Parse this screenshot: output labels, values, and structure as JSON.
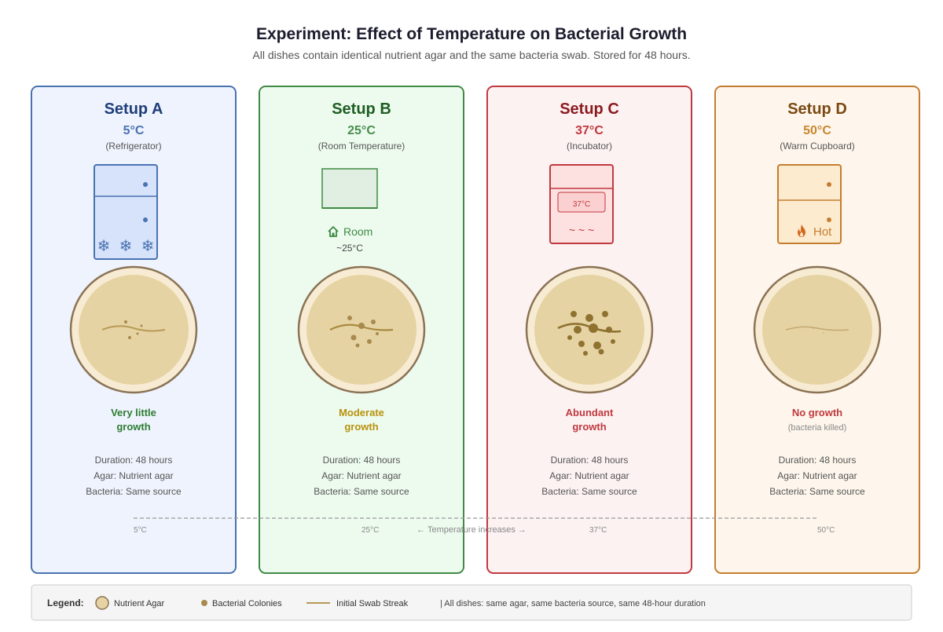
{
  "title": "Experiment: Effect of Temperature on Bacterial Growth",
  "subtitle": "All dishes contain identical nutrient agar and the same bacteria swab. Stored for 48 hours.",
  "setups": [
    {
      "name": "Setup A",
      "temp": "5°C",
      "location": "(Refrigerator)",
      "result_line1": "Very little",
      "result_line2": "growth",
      "result_note": "",
      "duration": "Duration: 48 hours",
      "agar": "Agar: Nutrient agar",
      "bacteria": "Bacteria: Same source",
      "scale_label": "5°C",
      "colors": {
        "border": "#4a72b0",
        "fill": "#eef3fd",
        "title": "#1f3f7a",
        "temp": "#4a72b0",
        "result": "#2e7d32"
      }
    },
    {
      "name": "Setup B",
      "temp": "25°C",
      "location": "(Room Temperature)",
      "result_line1": "Moderate",
      "result_line2": "growth",
      "result_note": "",
      "duration": "Duration: 48 hours",
      "agar": "Agar: Nutrient agar",
      "bacteria": "Bacteria: Same source",
      "scale_label": "25°C",
      "colors": {
        "border": "#3f8a44",
        "fill": "#edfbef",
        "title": "#1e5e22",
        "temp": "#4a8c4e",
        "result": "#b8920e"
      }
    },
    {
      "name": "Setup C",
      "temp": "37°C",
      "location": "(Incubator)",
      "result_line1": "Abundant",
      "result_line2": "growth",
      "result_note": "",
      "duration": "Duration: 48 hours",
      "agar": "Agar: Nutrient agar",
      "bacteria": "Bacteria: Same source",
      "scale_label": "37°C",
      "colors": {
        "border": "#c0393f",
        "fill": "#fdf2f2",
        "title": "#8b1a1f",
        "temp": "#c0393f",
        "result": "#c0393f"
      }
    },
    {
      "name": "Setup D",
      "temp": "50°C",
      "location": "(Warm Cupboard)",
      "result_line1": "No growth",
      "result_line2": "",
      "result_note": "(bacteria killed)",
      "duration": "Duration: 48 hours",
      "agar": "Agar: Nutrient agar",
      "bacteria": "Bacteria: Same source",
      "scale_label": "50°C",
      "colors": {
        "border": "#c47d30",
        "fill": "#fef6ec",
        "title": "#7a4a14",
        "temp": "#c8882f",
        "result": "#c0393f"
      }
    }
  ],
  "apparatus": {
    "room_label": "Room",
    "room_temp": "~25°C",
    "incubator_display": "37°C",
    "incubator_waves": "~ ~ ~",
    "cupboard_label": "Hot"
  },
  "scale": {
    "caption": "← Temperature increases →"
  },
  "legend": {
    "title": "Legend:",
    "agar": "Nutrient Agar",
    "colonies": "Bacterial Colonies",
    "streak": "Initial Swab Streak",
    "note": "| All dishes: same agar, same bacteria source, same 48-hour duration"
  }
}
